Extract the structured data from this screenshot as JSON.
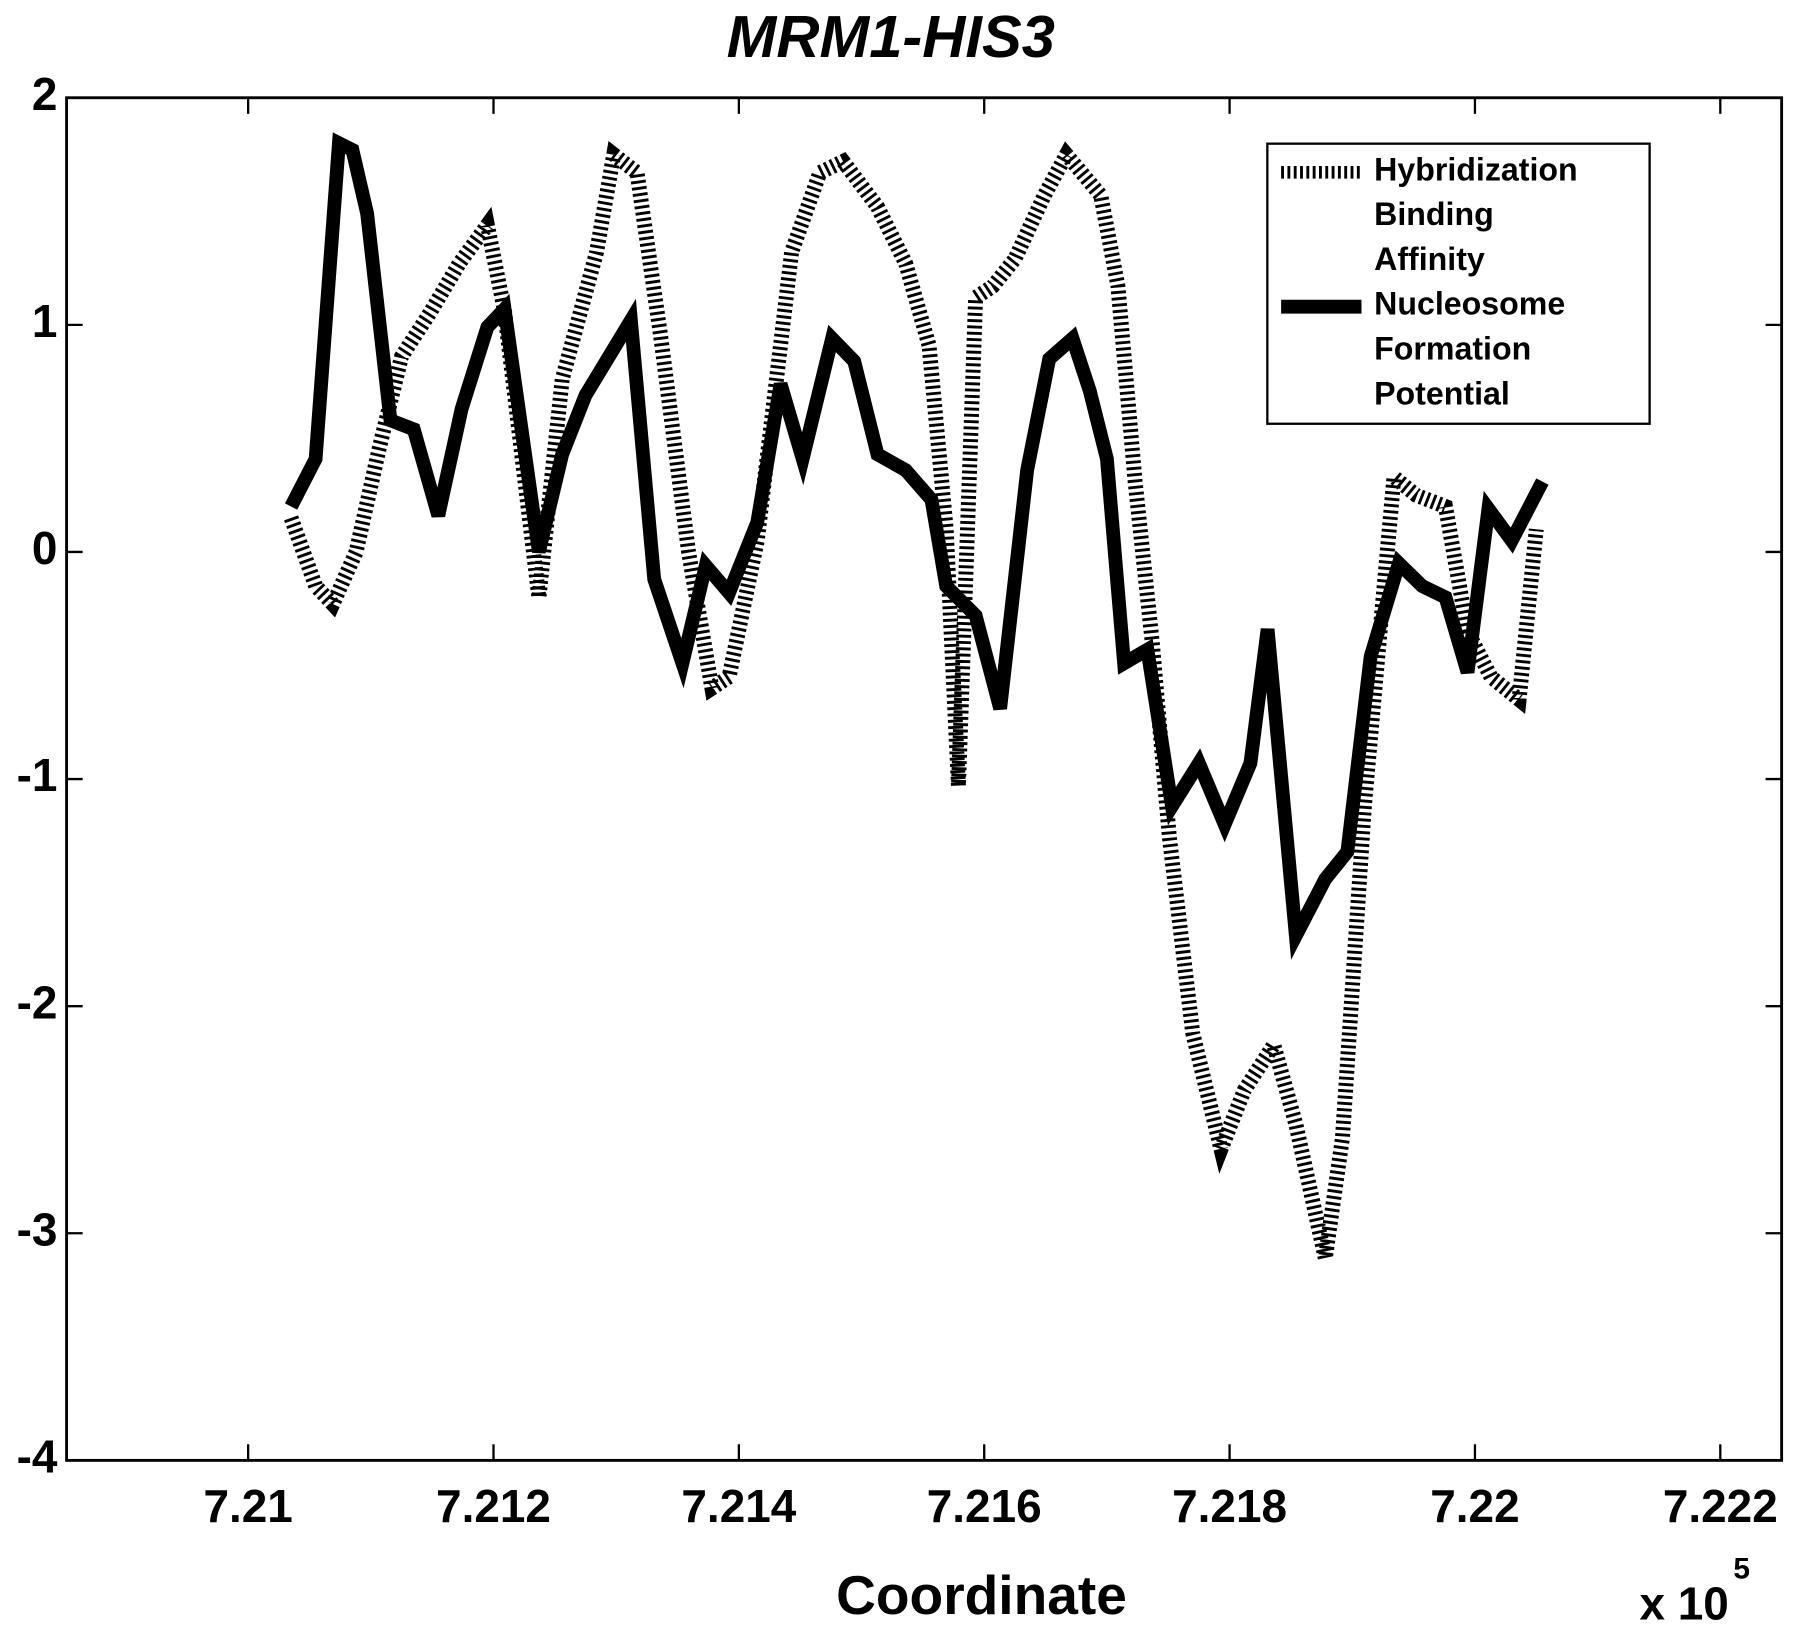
{
  "chart_data": {
    "type": "line",
    "title": "MRM1-HIS3",
    "x_label": "Coordinate",
    "x_multiplier": "x 10",
    "x_multiplier_exponent": "5",
    "xlim": [
      7.20852,
      7.2225
    ],
    "xticks": [
      7.21,
      7.212,
      7.214,
      7.216,
      7.218,
      7.22,
      7.222
    ],
    "ylim": [
      -4,
      2
    ],
    "yticks": [
      2,
      1,
      0,
      -1,
      -2,
      -3,
      -4
    ],
    "grid": false,
    "legend_position": "upper right",
    "series": [
      {
        "name": "Hybridization Binding Affinity",
        "color": "#000000",
        "line_style": "hatched",
        "x": [
          7.21035,
          7.21055,
          7.21069,
          7.21088,
          7.21107,
          7.21125,
          7.21149,
          7.21172,
          7.21195,
          7.21209,
          7.21237,
          7.21256,
          7.21284,
          7.21298,
          7.21317,
          7.21336,
          7.21359,
          7.21378,
          7.21392,
          7.21415,
          7.21443,
          7.21466,
          7.21485,
          7.21513,
          7.21536,
          7.21555,
          7.21569,
          7.21579,
          7.21593,
          7.21607,
          7.21625,
          7.21649,
          7.21667,
          7.21695,
          7.21709,
          7.21723,
          7.21737,
          7.21751,
          7.2177,
          7.21793,
          7.21812,
          7.21836,
          7.21854,
          7.21878,
          7.21892,
          7.2191,
          7.21934,
          7.21952,
          7.21976,
          7.21994,
          7.22013,
          7.22036,
          7.2205
        ],
        "values": [
          0.15,
          -0.15,
          -0.23,
          0.0,
          0.46,
          0.86,
          1.06,
          1.27,
          1.44,
          1.06,
          -0.2,
          0.76,
          1.32,
          1.75,
          1.67,
          0.96,
          0.0,
          -0.6,
          -0.55,
          0.05,
          1.32,
          1.67,
          1.72,
          1.52,
          1.27,
          0.91,
          0.1,
          -1.03,
          1.12,
          1.17,
          1.29,
          1.57,
          1.75,
          1.57,
          1.17,
          0.31,
          -0.4,
          -1.26,
          -2.12,
          -2.63,
          -2.37,
          -2.17,
          -2.52,
          -3.11,
          -2.58,
          -1.11,
          0.33,
          0.25,
          0.2,
          -0.35,
          -0.55,
          -0.65,
          0.1
        ]
      },
      {
        "name": "Nucleosome Formation Potential",
        "color": "#000000",
        "line_style": "solid",
        "x": [
          7.21035,
          7.21055,
          7.21074,
          7.21085,
          7.21097,
          7.21116,
          7.21135,
          7.21155,
          7.21174,
          7.21195,
          7.21209,
          7.21237,
          7.21256,
          7.21275,
          7.21312,
          7.21331,
          7.21354,
          7.21373,
          7.21392,
          7.21415,
          7.21434,
          7.21452,
          7.21476,
          7.21494,
          7.21513,
          7.21536,
          7.21557,
          7.21569,
          7.21593,
          7.21613,
          7.21635,
          7.21653,
          7.21672,
          7.21686,
          7.217,
          7.21714,
          7.21733,
          7.21753,
          7.21775,
          7.21796,
          7.21817,
          7.21831,
          7.21854,
          7.21878,
          7.21896,
          7.21915,
          7.21938,
          7.21957,
          7.21976,
          7.21994,
          7.22011,
          7.2203,
          7.22055
        ],
        "values": [
          0.2,
          0.41,
          1.8,
          1.77,
          1.49,
          0.58,
          0.54,
          0.16,
          0.63,
          0.99,
          1.07,
          0.0,
          0.43,
          0.69,
          1.02,
          -0.12,
          -0.49,
          -0.06,
          -0.18,
          0.13,
          0.74,
          0.41,
          0.94,
          0.84,
          0.43,
          0.36,
          0.23,
          -0.15,
          -0.28,
          -0.69,
          0.36,
          0.85,
          0.94,
          0.71,
          0.41,
          -0.49,
          -0.43,
          -1.12,
          -0.93,
          -1.2,
          -0.93,
          -0.34,
          -1.69,
          -1.44,
          -1.32,
          -0.46,
          -0.05,
          -0.15,
          -0.2,
          -0.53,
          0.19,
          0.05,
          0.31
        ]
      }
    ]
  }
}
